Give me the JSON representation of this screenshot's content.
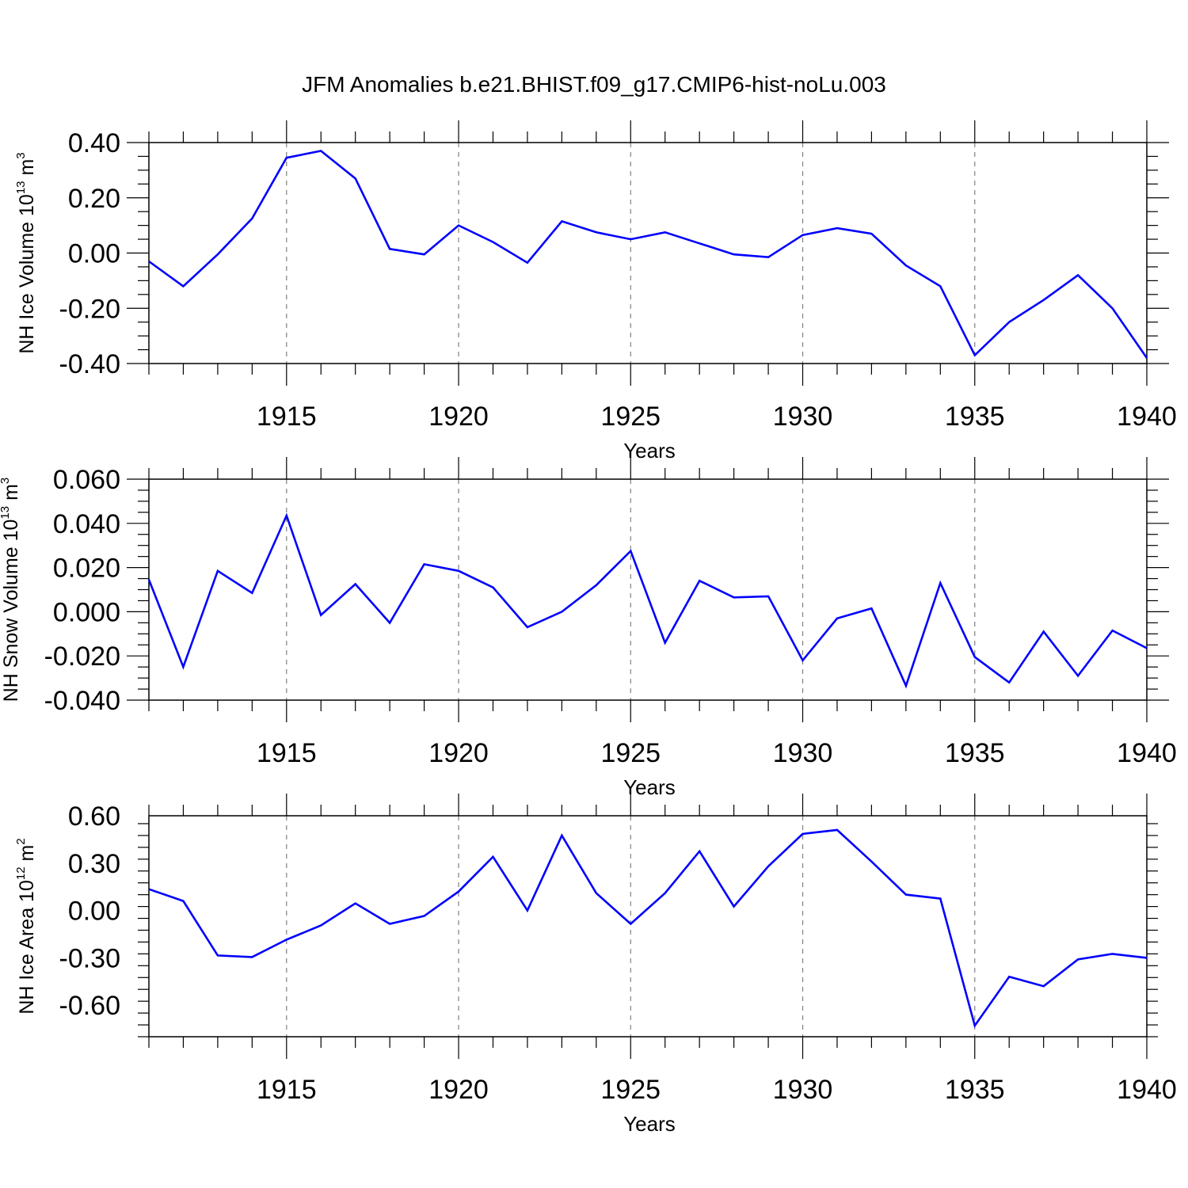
{
  "title": "JFM Anomalies b.e21.BHIST.f09_g17.CMIP6-hist-noLu.003",
  "colors": {
    "line": "#0000ff",
    "axis": "#000000",
    "grid": "#808080"
  },
  "chart_data": [
    {
      "type": "line",
      "ylabel": {
        "main": "NH Ice Volume 10",
        "sup": "13",
        "unit": " m",
        "unit_sup": "3"
      },
      "xlabel": "Years",
      "xlim": [
        1911,
        1940
      ],
      "ylim": [
        -0.4,
        0.4
      ],
      "yticks": [
        -0.4,
        -0.2,
        0.0,
        0.2,
        0.4
      ],
      "ytick_labels": [
        "-0.40",
        "-0.20",
        "0.00",
        "0.20",
        "0.40"
      ],
      "xticks": [
        1915,
        1920,
        1925,
        1930,
        1935,
        1940
      ],
      "xtick_labels": [
        "1915",
        "1920",
        "1925",
        "1930",
        "1935",
        "1940"
      ],
      "grid": "vertical dashed at major x ticks",
      "x": [
        1911,
        1912,
        1913,
        1914,
        1915,
        1916,
        1917,
        1918,
        1919,
        1920,
        1921,
        1922,
        1923,
        1924,
        1925,
        1926,
        1927,
        1928,
        1929,
        1930,
        1931,
        1932,
        1933,
        1934,
        1935,
        1936,
        1937,
        1938,
        1939,
        1940
      ],
      "values": [
        -0.03,
        -0.12,
        -0.005,
        0.125,
        0.345,
        0.37,
        0.27,
        0.015,
        -0.005,
        0.1,
        0.04,
        -0.035,
        0.115,
        0.075,
        0.05,
        0.075,
        0.035,
        -0.005,
        -0.015,
        0.065,
        0.09,
        0.07,
        -0.045,
        -0.12,
        -0.37,
        -0.25,
        -0.17,
        -0.08,
        -0.2,
        -0.38
      ]
    },
    {
      "type": "line",
      "ylabel": {
        "main": "NH Snow Volume 10",
        "sup": "13",
        "unit": " m",
        "unit_sup": "3"
      },
      "xlabel": "Years",
      "xlim": [
        1911,
        1940
      ],
      "ylim": [
        -0.04,
        0.06
      ],
      "yticks": [
        -0.04,
        -0.02,
        0.0,
        0.02,
        0.04,
        0.06
      ],
      "ytick_labels": [
        "-0.040",
        "-0.020",
        "0.000",
        "0.020",
        "0.040",
        "0.060"
      ],
      "xticks": [
        1915,
        1920,
        1925,
        1930,
        1935,
        1940
      ],
      "xtick_labels": [
        "1915",
        "1920",
        "1925",
        "1930",
        "1935",
        "1940"
      ],
      "grid": "vertical dashed at major x ticks",
      "x": [
        1911,
        1912,
        1913,
        1914,
        1915,
        1916,
        1917,
        1918,
        1919,
        1920,
        1921,
        1922,
        1923,
        1924,
        1925,
        1926,
        1927,
        1928,
        1929,
        1930,
        1931,
        1932,
        1933,
        1934,
        1935,
        1936,
        1937,
        1938,
        1939,
        1940
      ],
      "values": [
        0.0145,
        -0.025,
        0.0185,
        0.0085,
        0.0435,
        -0.0015,
        0.0125,
        -0.005,
        0.0215,
        0.0185,
        0.011,
        -0.007,
        0.0,
        0.012,
        0.0275,
        -0.014,
        0.014,
        0.0065,
        0.007,
        -0.022,
        -0.003,
        0.0015,
        -0.0335,
        0.013,
        -0.0205,
        -0.032,
        -0.009,
        -0.029,
        -0.0085,
        -0.0165
      ]
    },
    {
      "type": "line",
      "ylabel": {
        "main": "NH Ice Area 10",
        "sup": "12",
        "unit": " m",
        "unit_sup": "2"
      },
      "xlabel": "Years",
      "xlim": [
        1911,
        1940
      ],
      "ylim": [
        -0.8,
        0.6
      ],
      "yticks": [
        -0.6,
        -0.3,
        0.0,
        0.3,
        0.6
      ],
      "ytick_labels": [
        "-0.60",
        "-0.30",
        "0.00",
        "0.30",
        "0.60"
      ],
      "xticks": [
        1915,
        1920,
        1925,
        1930,
        1935,
        1940
      ],
      "xtick_labels": [
        "1915",
        "1920",
        "1925",
        "1930",
        "1935",
        "1940"
      ],
      "grid": "vertical dashed at major x ticks",
      "x": [
        1911,
        1912,
        1913,
        1914,
        1915,
        1916,
        1917,
        1918,
        1919,
        1920,
        1921,
        1922,
        1923,
        1924,
        1925,
        1926,
        1927,
        1928,
        1929,
        1930,
        1931,
        1932,
        1933,
        1934,
        1935,
        1936,
        1937,
        1938,
        1939,
        1940
      ],
      "values": [
        0.135,
        0.06,
        -0.285,
        -0.295,
        -0.185,
        -0.095,
        0.045,
        -0.085,
        -0.035,
        0.12,
        0.34,
        0.0,
        0.475,
        0.11,
        -0.085,
        0.11,
        0.375,
        0.025,
        0.28,
        0.485,
        0.51,
        0.31,
        0.1,
        0.075,
        -0.73,
        -0.42,
        -0.48,
        -0.31,
        -0.275,
        -0.3
      ]
    }
  ]
}
